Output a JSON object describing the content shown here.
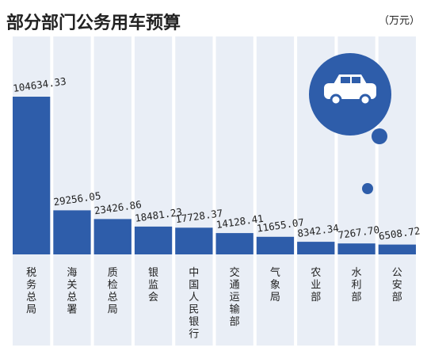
{
  "colors": {
    "background": "#ffffff",
    "column_bg": "#e9eef6",
    "bar": "#2e5daa",
    "circle": "#2e5daa",
    "car_body": "#ffffff",
    "title": "#222222",
    "value_text": "#222222",
    "category_text": "#222222"
  },
  "icon": "car-icon",
  "chart_data": {
    "type": "bar",
    "title": "部分部门公务用车预算",
    "unit": "（万元）",
    "xlabel": "",
    "ylabel": "",
    "ylim": [
      0,
      110000
    ],
    "grid": false,
    "legend": "none",
    "categories": [
      "税务总局",
      "海关总署",
      "质检总局",
      "银监会",
      "中国人民银行",
      "交通运输部",
      "气象局",
      "农业部",
      "水利部",
      "公安部"
    ],
    "values": [
      104634.33,
      29256.05,
      23426.86,
      18481.23,
      17728.37,
      14128.41,
      11655.07,
      8342.34,
      7267.7,
      6508.72
    ],
    "labels": [
      "104634.33",
      "29256.05",
      "23426.86",
      "18481.23",
      "17728.37",
      "14128.41",
      "11655.07",
      "8342.34",
      "7267.70",
      "6508.72"
    ]
  }
}
